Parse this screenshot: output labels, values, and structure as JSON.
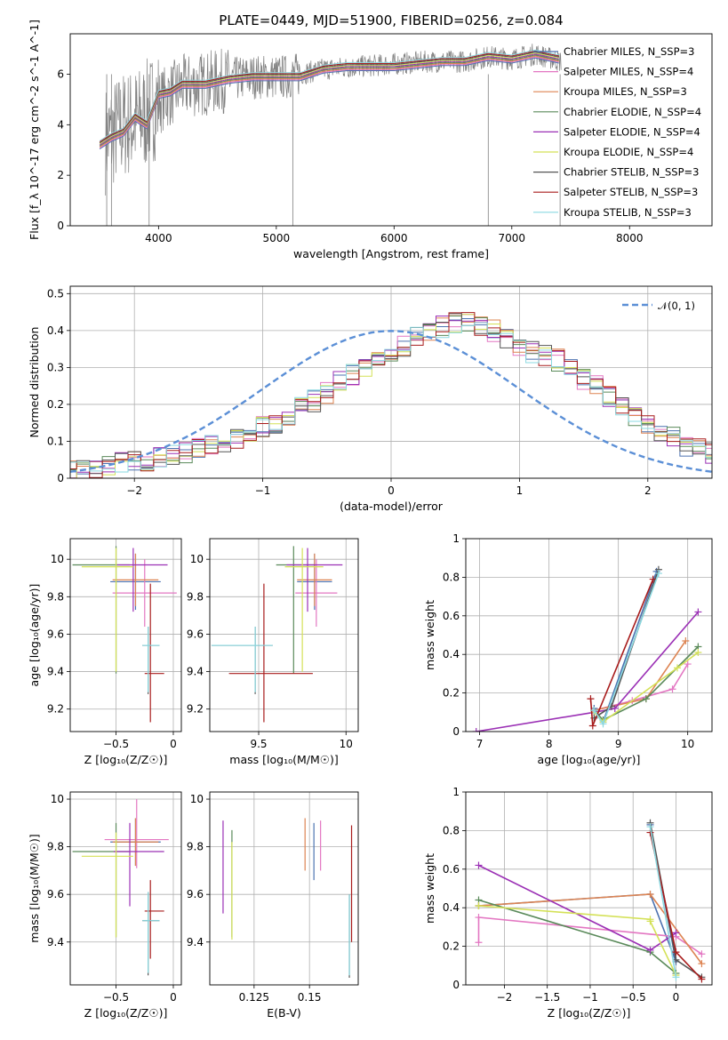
{
  "figure": {
    "title": "PLATE=0449, MJD=51900, FIBERID=0256, z=0.084"
  },
  "models": [
    {
      "label": "Chabrier MILES, N_SSP=3",
      "color": "#4c72b0"
    },
    {
      "label": "Salpeter MILES, N_SSP=4",
      "color": "#e377c2"
    },
    {
      "label": "Kroupa MILES, N_SSP=3",
      "color": "#dd8452"
    },
    {
      "label": "Chabrier ELODIE, N_SSP=4",
      "color": "#5a8a5a"
    },
    {
      "label": "Salpeter ELODIE, N_SSP=4",
      "color": "#9b30b5"
    },
    {
      "label": "Kroupa ELODIE, N_SSP=4",
      "color": "#d4e157"
    },
    {
      "label": "Chabrier STELIB, N_SSP=3",
      "color": "#555555"
    },
    {
      "label": "Salpeter STELIB, N_SSP=3",
      "color": "#a81c1c"
    },
    {
      "label": "Kroupa STELIB, N_SSP=3",
      "color": "#8ad8e0"
    }
  ],
  "chart_data": [
    {
      "type": "line",
      "id": "spectrum",
      "xlabel": "wavelength [Angstrom, rest frame]",
      "ylabel": "Flux [f_λ 10^-17 erg cm^-2 s^-1 A^-1]",
      "xlim": [
        3250,
        8700
      ],
      "ylim": [
        0,
        7.6
      ],
      "xticks": [
        4000,
        5000,
        6000,
        7000,
        8000
      ],
      "yticks": [
        0,
        2,
        4,
        6
      ],
      "grid": false,
      "legend": "right",
      "data_series": {
        "name": "data",
        "color": "#808080",
        "x": [
          3550,
          3700,
          3850,
          4000,
          4200,
          4500,
          4800,
          5100,
          5400,
          5700,
          6000,
          6300,
          6600,
          6800,
          7000,
          7200,
          7420
        ],
        "y": [
          3.4,
          4.0,
          4.2,
          4.9,
          5.5,
          5.7,
          5.9,
          5.9,
          6.2,
          6.3,
          6.4,
          6.5,
          6.5,
          6.7,
          6.6,
          6.8,
          6.5
        ]
      },
      "model_curve": {
        "x": [
          3500,
          3600,
          3700,
          3800,
          3900,
          4000,
          4100,
          4200,
          4400,
          4600,
          4800,
          5000,
          5200,
          5400,
          5600,
          5800,
          6000,
          6200,
          6400,
          6600,
          6800,
          7000,
          7200,
          7400
        ],
        "y": [
          3.2,
          3.5,
          3.7,
          4.3,
          4.0,
          5.2,
          5.3,
          5.6,
          5.6,
          5.8,
          5.9,
          5.9,
          5.9,
          6.2,
          6.3,
          6.3,
          6.3,
          6.4,
          6.5,
          6.5,
          6.7,
          6.6,
          6.8,
          6.6
        ]
      }
    },
    {
      "type": "line",
      "id": "residuals",
      "xlabel": "(data-model)/error",
      "ylabel": "Normed distribution",
      "xlim": [
        -2.5,
        2.5
      ],
      "ylim": [
        0,
        0.52
      ],
      "xticks": [
        -2,
        -1,
        0,
        1,
        2
      ],
      "yticks": [
        0.0,
        0.1,
        0.2,
        0.3,
        0.4,
        0.5
      ],
      "grid": true,
      "legend": "top-right",
      "gaussian_label": "𝒩(0, 1)",
      "bin_width": 0.1,
      "hist_base": [
        0.02,
        0.02,
        0.03,
        0.03,
        0.04,
        0.05,
        0.05,
        0.06,
        0.06,
        0.07,
        0.08,
        0.09,
        0.1,
        0.11,
        0.12,
        0.14,
        0.15,
        0.17,
        0.19,
        0.21,
        0.23,
        0.26,
        0.28,
        0.3,
        0.32,
        0.34,
        0.36,
        0.38,
        0.4,
        0.41,
        0.42,
        0.42,
        0.41,
        0.4,
        0.38,
        0.36,
        0.34,
        0.33,
        0.32,
        0.3,
        0.27,
        0.25,
        0.22,
        0.2,
        0.17,
        0.15,
        0.13,
        0.11,
        0.09,
        0.08,
        0.07
      ]
    },
    {
      "type": "scatter",
      "id": "age-z",
      "xlabel": "Z [log₁₀(Z/Z☉)]",
      "ylabel": "age  [log₁₀(age/yr)]",
      "xlim": [
        -0.9,
        0.07
      ],
      "ylim": [
        9.08,
        10.11
      ],
      "xticks": [
        -0.5,
        0.0
      ],
      "yticks": [
        9.2,
        9.4,
        9.6,
        9.8,
        10.0
      ],
      "points": [
        {
          "m": 0,
          "x": -0.33,
          "y": 9.88,
          "xe": [
            0.22,
            0.22
          ],
          "ye": [
            0.15,
            0.15
          ]
        },
        {
          "m": 1,
          "x": -0.25,
          "y": 9.82,
          "xe": [
            0.28,
            0.28
          ],
          "ye": [
            0.18,
            0.18
          ]
        },
        {
          "m": 2,
          "x": -0.33,
          "y": 9.89,
          "xe": [
            0.2,
            0.2
          ],
          "ye": [
            0.14,
            0.14
          ]
        },
        {
          "m": 3,
          "x": -0.5,
          "y": 9.97,
          "xe": [
            0.38,
            0.12
          ],
          "ye": [
            0.58,
            0.1
          ]
        },
        {
          "m": 4,
          "x": -0.35,
          "y": 9.97,
          "xe": [
            0.14,
            0.3
          ],
          "ye": [
            0.25,
            0.09
          ]
        },
        {
          "m": 5,
          "x": -0.5,
          "y": 9.96,
          "xe": [
            0.3,
            0.15
          ],
          "ye": [
            0.56,
            0.1
          ]
        },
        {
          "m": 6,
          "x": -0.22,
          "y": 9.54,
          "xe": [
            0.05,
            0.1
          ],
          "ye": [
            0.26,
            0.1
          ]
        },
        {
          "m": 7,
          "x": -0.2,
          "y": 9.39,
          "xe": [
            0.05,
            0.12
          ],
          "ye": [
            0.26,
            0.48
          ]
        },
        {
          "m": 8,
          "x": -0.22,
          "y": 9.54,
          "xe": [
            0.05,
            0.1
          ],
          "ye": [
            0.25,
            0.1
          ]
        }
      ]
    },
    {
      "type": "scatter",
      "id": "age-mass",
      "xlabel": "mass [log₁₀(M/M☉)]",
      "ylabel": "",
      "xlim": [
        9.22,
        10.07
      ],
      "ylim": [
        9.08,
        10.11
      ],
      "xticks": [
        9.5,
        10.0
      ],
      "yticks": [
        9.2,
        9.4,
        9.6,
        9.8,
        10.0
      ],
      "points": [
        {
          "m": 0,
          "x": 9.82,
          "y": 9.88,
          "xe": [
            0.1,
            0.1
          ],
          "ye": [
            0.15,
            0.15
          ]
        },
        {
          "m": 1,
          "x": 9.83,
          "y": 9.82,
          "xe": [
            0.12,
            0.12
          ],
          "ye": [
            0.18,
            0.18
          ]
        },
        {
          "m": 2,
          "x": 9.82,
          "y": 9.89,
          "xe": [
            0.1,
            0.1
          ],
          "ye": [
            0.14,
            0.14
          ]
        },
        {
          "m": 3,
          "x": 9.7,
          "y": 9.97,
          "xe": [
            0.1,
            0.12
          ],
          "ye": [
            0.58,
            0.1
          ]
        },
        {
          "m": 4,
          "x": 9.78,
          "y": 9.97,
          "xe": [
            0.12,
            0.2
          ],
          "ye": [
            0.25,
            0.09
          ]
        },
        {
          "m": 5,
          "x": 9.75,
          "y": 9.96,
          "xe": [
            0.1,
            0.12
          ],
          "ye": [
            0.56,
            0.1
          ]
        },
        {
          "m": 6,
          "x": 9.48,
          "y": 9.54,
          "xe": [
            0.25,
            0.1
          ],
          "ye": [
            0.26,
            0.1
          ]
        },
        {
          "m": 7,
          "x": 9.53,
          "y": 9.39,
          "xe": [
            0.2,
            0.28
          ],
          "ye": [
            0.26,
            0.48
          ]
        },
        {
          "m": 8,
          "x": 9.48,
          "y": 9.54,
          "xe": [
            0.25,
            0.1
          ],
          "ye": [
            0.25,
            0.1
          ]
        }
      ]
    },
    {
      "type": "line",
      "id": "mw-age",
      "xlabel": "age  [log₁₀(age/yr)]",
      "ylabel": "mass weight",
      "xlim": [
        6.8,
        10.35
      ],
      "ylim": [
        0,
        1.0
      ],
      "xticks": [
        7,
        8,
        9,
        10
      ],
      "yticks": [
        0.0,
        0.2,
        0.4,
        0.6,
        0.8,
        1.0
      ],
      "grid": true,
      "series": [
        {
          "m": 0,
          "x": [
            8.65,
            8.78,
            9.55
          ],
          "y": [
            0.12,
            0.05,
            0.83
          ]
        },
        {
          "m": 1,
          "x": [
            8.65,
            9.2,
            9.78,
            10.0
          ],
          "y": [
            0.11,
            0.16,
            0.22,
            0.35
          ]
        },
        {
          "m": 2,
          "x": [
            8.65,
            9.4,
            9.97
          ],
          "y": [
            0.11,
            0.17,
            0.47
          ]
        },
        {
          "m": 3,
          "x": [
            8.65,
            8.78,
            9.4,
            10.15
          ],
          "y": [
            0.11,
            0.06,
            0.17,
            0.44
          ]
        },
        {
          "m": 4,
          "x": [
            6.95,
            8.65,
            8.95,
            10.15
          ],
          "y": [
            0.0,
            0.1,
            0.12,
            0.62
          ]
        },
        {
          "m": 5,
          "x": [
            8.65,
            8.78,
            9.85,
            10.15
          ],
          "y": [
            0.1,
            0.05,
            0.33,
            0.41
          ]
        },
        {
          "m": 6,
          "x": [
            8.65,
            8.9,
            9.58
          ],
          "y": [
            0.07,
            0.13,
            0.84
          ]
        },
        {
          "m": 7,
          "x": [
            8.6,
            8.63,
            9.5
          ],
          "y": [
            0.17,
            0.03,
            0.79
          ]
        },
        {
          "m": 8,
          "x": [
            8.65,
            8.78,
            9.58
          ],
          "y": [
            0.11,
            0.04,
            0.82
          ]
        }
      ]
    },
    {
      "type": "scatter",
      "id": "mass-z",
      "xlabel": "Z [log₁₀(Z/Z☉)]",
      "ylabel": "mass [log₁₀(M/M☉)]",
      "xlim": [
        -0.9,
        0.07
      ],
      "ylim": [
        9.22,
        10.03
      ],
      "xticks": [
        -0.5,
        0.0
      ],
      "yticks": [
        9.4,
        9.6,
        9.8,
        10.0
      ],
      "points": [
        {
          "m": 0,
          "x": -0.33,
          "y": 9.82,
          "xe": [
            0.22,
            0.22
          ],
          "ye": [
            0.1,
            0.1
          ]
        },
        {
          "m": 1,
          "x": -0.32,
          "y": 9.83,
          "xe": [
            0.28,
            0.28
          ],
          "ye": [
            0.12,
            0.17
          ]
        },
        {
          "m": 2,
          "x": -0.33,
          "y": 9.82,
          "xe": [
            0.2,
            0.2
          ],
          "ye": [
            0.1,
            0.1
          ]
        },
        {
          "m": 3,
          "x": -0.5,
          "y": 9.78,
          "xe": [
            0.38,
            0.12
          ],
          "ye": [
            0.36,
            0.12
          ]
        },
        {
          "m": 4,
          "x": -0.38,
          "y": 9.78,
          "xe": [
            0.14,
            0.3
          ],
          "ye": [
            0.23,
            0.12
          ]
        },
        {
          "m": 5,
          "x": -0.5,
          "y": 9.76,
          "xe": [
            0.3,
            0.15
          ],
          "ye": [
            0.34,
            0.1
          ]
        },
        {
          "m": 6,
          "x": -0.22,
          "y": 9.49,
          "xe": [
            0.05,
            0.1
          ],
          "ye": [
            0.23,
            0.12
          ]
        },
        {
          "m": 7,
          "x": -0.2,
          "y": 9.53,
          "xe": [
            0.05,
            0.12
          ],
          "ye": [
            0.2,
            0.13
          ]
        },
        {
          "m": 8,
          "x": -0.22,
          "y": 9.49,
          "xe": [
            0.05,
            0.1
          ],
          "ye": [
            0.22,
            0.12
          ]
        }
      ]
    },
    {
      "type": "scatter",
      "id": "mass-ebv",
      "xlabel": "E(B-V)",
      "ylabel": "",
      "xlim": [
        0.105,
        0.172
      ],
      "ylim": [
        9.22,
        10.03
      ],
      "xticks": [
        0.125,
        0.15
      ],
      "yticks": [
        9.4,
        9.6,
        9.8,
        10.0
      ],
      "points": [
        {
          "m": 0,
          "x": 0.152,
          "y": 9.8,
          "ye": [
            0.14,
            0.1
          ]
        },
        {
          "m": 1,
          "x": 0.155,
          "y": 9.81,
          "ye": [
            0.11,
            0.1
          ]
        },
        {
          "m": 2,
          "x": 0.148,
          "y": 9.82,
          "ye": [
            0.12,
            0.1
          ]
        },
        {
          "m": 3,
          "x": 0.115,
          "y": 9.7,
          "ye": [
            0.28,
            0.17
          ]
        },
        {
          "m": 4,
          "x": 0.111,
          "y": 9.7,
          "ye": [
            0.18,
            0.21
          ]
        },
        {
          "m": 5,
          "x": 0.115,
          "y": 9.68,
          "ye": [
            0.27,
            0.14
          ]
        },
        {
          "m": 6,
          "x": 0.168,
          "y": 9.43,
          "ye": [
            0.18,
            0.17
          ]
        },
        {
          "m": 7,
          "x": 0.169,
          "y": 9.6,
          "ye": [
            0.2,
            0.29
          ]
        },
        {
          "m": 8,
          "x": 0.168,
          "y": 9.43,
          "ye": [
            0.17,
            0.17
          ]
        }
      ]
    },
    {
      "type": "line",
      "id": "mw-z",
      "xlabel": "Z [log₁₀(Z/Z☉)]",
      "ylabel": "mass weight",
      "xlim": [
        -2.45,
        0.42
      ],
      "ylim": [
        0,
        1.0
      ],
      "xticks": [
        -2.0,
        -1.5,
        -1.0,
        -0.5,
        0.0
      ],
      "yticks": [
        0.0,
        0.2,
        0.4,
        0.6,
        0.8,
        1.0
      ],
      "grid": true,
      "series": [
        {
          "m": 0,
          "x": [
            -2.3,
            -0.3,
            0.0,
            -0.3
          ],
          "y": [
            0.41,
            0.47,
            0.12,
            0.83
          ]
        },
        {
          "m": 1,
          "x": [
            -2.3,
            -2.3,
            0.0,
            0.3
          ],
          "y": [
            0.22,
            0.35,
            0.25,
            0.16
          ]
        },
        {
          "m": 2,
          "x": [
            -2.3,
            -0.3,
            0.3
          ],
          "y": [
            0.41,
            0.47,
            0.11
          ]
        },
        {
          "m": 3,
          "x": [
            -2.3,
            -0.3,
            0.0
          ],
          "y": [
            0.44,
            0.17,
            0.06
          ]
        },
        {
          "m": 4,
          "x": [
            -2.3,
            -0.3,
            0.0
          ],
          "y": [
            0.62,
            0.18,
            0.27
          ]
        },
        {
          "m": 5,
          "x": [
            -2.3,
            -0.3,
            -0.3,
            0.0
          ],
          "y": [
            0.41,
            0.34,
            0.33,
            0.05
          ]
        },
        {
          "m": 6,
          "x": [
            -0.3,
            0.0,
            0.3
          ],
          "y": [
            0.84,
            0.13,
            0.04
          ]
        },
        {
          "m": 7,
          "x": [
            -0.3,
            0.0,
            0.3
          ],
          "y": [
            0.79,
            0.17,
            0.03
          ]
        },
        {
          "m": 8,
          "x": [
            -0.3,
            0.0
          ],
          "y": [
            0.82,
            0.04
          ]
        }
      ]
    }
  ]
}
